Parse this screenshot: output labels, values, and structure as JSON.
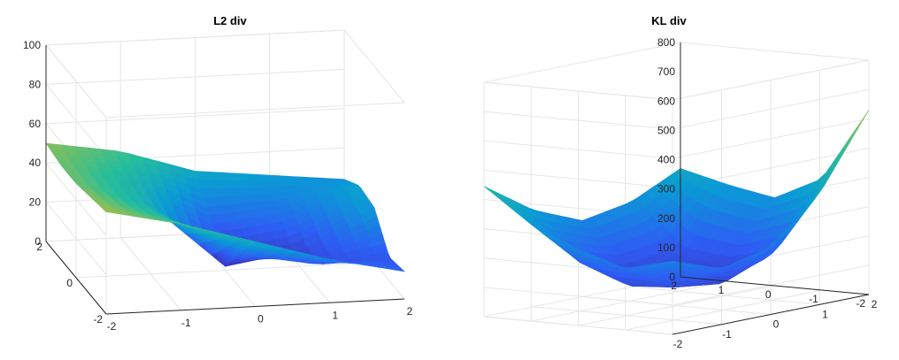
{
  "chart_data": [
    {
      "type": "surface",
      "title": "L2 div",
      "xlabel": "",
      "ylabel": "",
      "zlabel": "",
      "xlim": [
        -2,
        2
      ],
      "ylim": [
        -2,
        2
      ],
      "zlim": [
        0,
        100
      ],
      "x_ticks": [
        "-2",
        "-1",
        "0",
        "1",
        "2"
      ],
      "y_ticks": [
        "-2",
        "0",
        "2"
      ],
      "z_ticks": [
        "0",
        "20",
        "40",
        "60",
        "80",
        "100"
      ],
      "grid": true,
      "colormap": "parula",
      "x": [
        -2,
        -1,
        0,
        1,
        2
      ],
      "y": [
        -2,
        -1,
        0,
        1,
        2
      ],
      "z": [
        [
          52,
          44,
          33,
          22,
          14
        ],
        [
          50,
          38,
          18,
          10,
          12
        ],
        [
          48,
          35,
          2,
          8,
          28
        ],
        [
          48,
          37,
          16,
          20,
          30
        ],
        [
          50,
          44,
          32,
          28,
          24
        ]
      ]
    },
    {
      "type": "surface",
      "title": "KL div",
      "xlabel": "",
      "ylabel": "",
      "zlabel": "",
      "xlim": [
        -2,
        2
      ],
      "ylim": [
        -2,
        2
      ],
      "zlim": [
        0,
        800
      ],
      "x_ticks": [
        "-2",
        "-1",
        "0",
        "1",
        "2"
      ],
      "y_ticks": [
        "-2",
        "-1",
        "0",
        "1",
        "2"
      ],
      "z_ticks": [
        "0",
        "100",
        "200",
        "300",
        "400",
        "500",
        "600",
        "700",
        "800"
      ],
      "grid": true,
      "colormap": "parula",
      "x": [
        -2,
        -1,
        0,
        1,
        2
      ],
      "y": [
        -2,
        -1,
        0,
        1,
        2
      ],
      "z": [
        [
          250,
          190,
          230,
          380,
          630
        ],
        [
          210,
          110,
          90,
          150,
          380
        ],
        [
          260,
          100,
          72,
          110,
          300
        ],
        [
          330,
          160,
          110,
          130,
          330
        ],
        [
          445,
          330,
          260,
          290,
          370
        ]
      ]
    }
  ]
}
